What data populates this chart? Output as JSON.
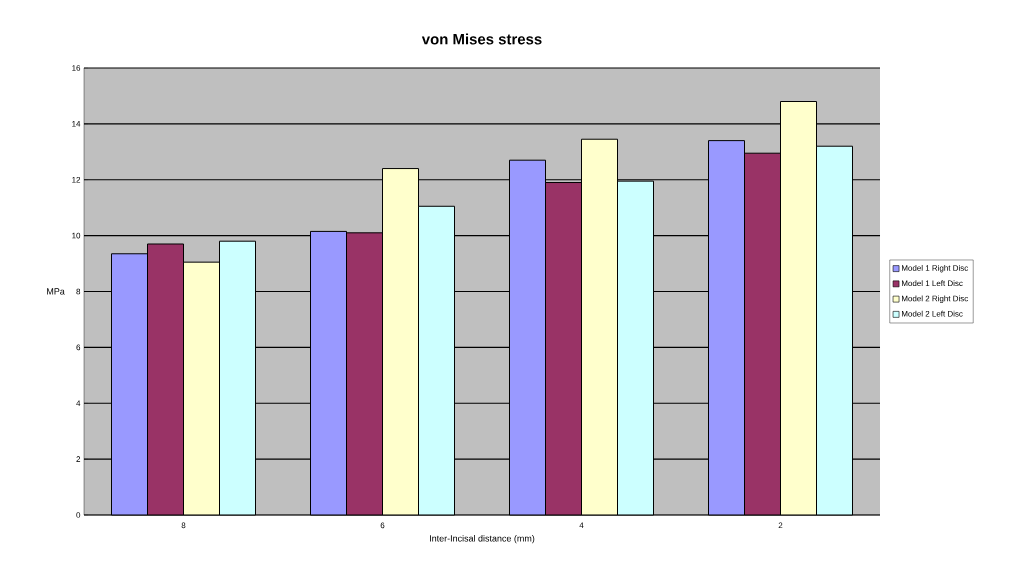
{
  "chart_data": {
    "type": "bar",
    "title": "von Mises stress",
    "xlabel": "Inter-Incisal distance (mm)",
    "ylabel": "MPa",
    "categories": [
      "8",
      "6",
      "4",
      "2"
    ],
    "series": [
      {
        "name": "Model 1 Right Disc",
        "color": "#9999ff",
        "values": [
          9.35,
          10.15,
          12.7,
          13.4
        ]
      },
      {
        "name": "Model 1 Left Disc",
        "color": "#993366",
        "values": [
          9.7,
          10.1,
          11.9,
          12.95
        ]
      },
      {
        "name": "Model 2 Right Disc",
        "color": "#ffffcc",
        "values": [
          9.05,
          12.4,
          13.45,
          14.8
        ]
      },
      {
        "name": "Model 2 Left Disc",
        "color": "#ccffff",
        "values": [
          9.8,
          11.05,
          11.95,
          13.2
        ]
      }
    ],
    "ylim": [
      0,
      16
    ],
    "yticks": [
      0,
      2,
      4,
      6,
      8,
      10,
      12,
      14,
      16
    ],
    "grid": "y",
    "legend": "right"
  }
}
